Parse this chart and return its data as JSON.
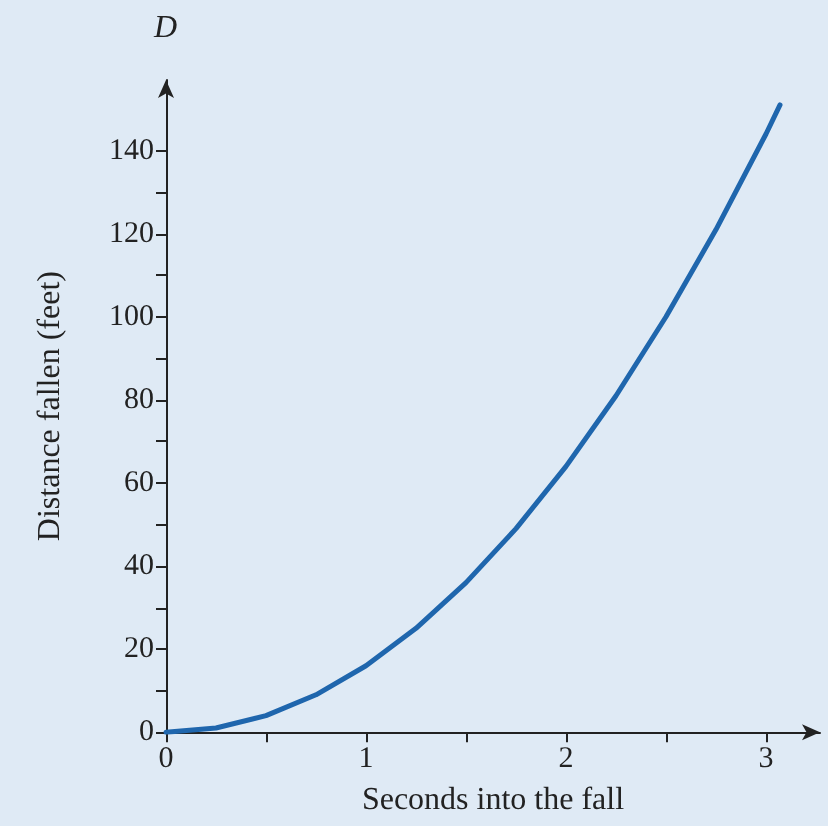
{
  "chart_data": {
    "type": "line",
    "xlabel": "Seconds into the fall",
    "ylabel": "Distance fallen (feet)",
    "annotations": [
      "D"
    ],
    "x": [
      0,
      0.25,
      0.5,
      0.75,
      1,
      1.25,
      1.5,
      1.75,
      2,
      2.25,
      2.5,
      2.75,
      3,
      3.07
    ],
    "values": [
      0,
      1,
      4,
      9,
      16,
      25,
      36,
      49,
      64,
      81,
      100,
      121,
      144,
      151
    ],
    "color": "#1f66ad",
    "marker": "none",
    "xlim": [
      0,
      3.27
    ],
    "ylim": [
      0,
      157
    ],
    "xticks": [
      0,
      {
        "value": 0.5,
        "label": null
      },
      1,
      {
        "value": 1.5,
        "label": null
      },
      2,
      {
        "value": 2.5,
        "label": null
      },
      3
    ],
    "yticks": [
      0,
      {
        "value": 10,
        "label": null
      },
      20,
      {
        "value": 30,
        "label": null
      },
      40,
      {
        "value": 50,
        "label": null
      },
      60,
      {
        "value": 70,
        "label": null
      },
      80,
      {
        "value": 90,
        "label": null
      },
      100,
      {
        "value": 110,
        "label": null
      },
      120,
      {
        "value": 130,
        "label": null
      },
      140
    ]
  }
}
